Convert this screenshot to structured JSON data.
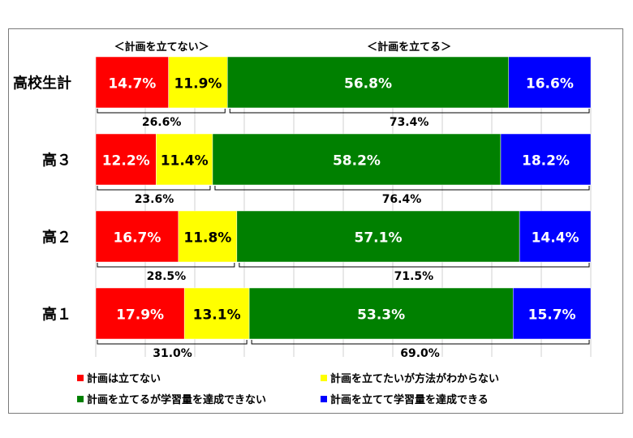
{
  "chart_data": {
    "type": "bar",
    "orientation": "horizontal",
    "stacked": true,
    "percent": true,
    "categories": [
      "高校生計",
      "高３",
      "高２",
      "高１"
    ],
    "series": [
      {
        "name": "計画は立てない",
        "color": "#ff0000",
        "values": [
          14.7,
          12.2,
          16.7,
          17.9
        ],
        "labels": [
          "14.7%",
          "12.2%",
          "16.7%",
          "17.9%"
        ],
        "label_color": "#ffffff"
      },
      {
        "name": "計画を立てたいが方法がわからない",
        "color": "#ffff00",
        "values": [
          11.9,
          11.4,
          11.8,
          13.1
        ],
        "labels": [
          "11.9%",
          "11.4%",
          "11.8%",
          "13.1%"
        ],
        "label_color": "#000000"
      },
      {
        "name": "計画を立てるが学習量を達成できない",
        "color": "#008000",
        "values": [
          56.8,
          58.2,
          57.1,
          53.3
        ],
        "labels": [
          "56.8%",
          "58.2%",
          "57.1%",
          "53.3%"
        ],
        "label_color": "#ffffff"
      },
      {
        "name": "計画を立てて学習量を達成できる",
        "color": "#0000ff",
        "values": [
          16.6,
          18.2,
          14.4,
          15.7
        ],
        "labels": [
          "16.6%",
          "18.2%",
          "14.4%",
          "15.7%"
        ],
        "label_color": "#ffffff"
      }
    ],
    "group_headers": {
      "not_plan": "＜計画を立てない＞",
      "plan": "＜計画を立てる＞"
    },
    "group_totals": {
      "not_plan": [
        26.6,
        23.6,
        28.5,
        31.0
      ],
      "not_plan_labels": [
        "26.6%",
        "23.6%",
        "28.5%",
        "31.0%"
      ],
      "plan": [
        73.4,
        76.4,
        71.5,
        69.0
      ],
      "plan_labels": [
        "73.4%",
        "76.4%",
        "71.5%",
        "69.0%"
      ]
    },
    "xlim": [
      0,
      100
    ],
    "grid": true,
    "legend_position": "bottom"
  }
}
